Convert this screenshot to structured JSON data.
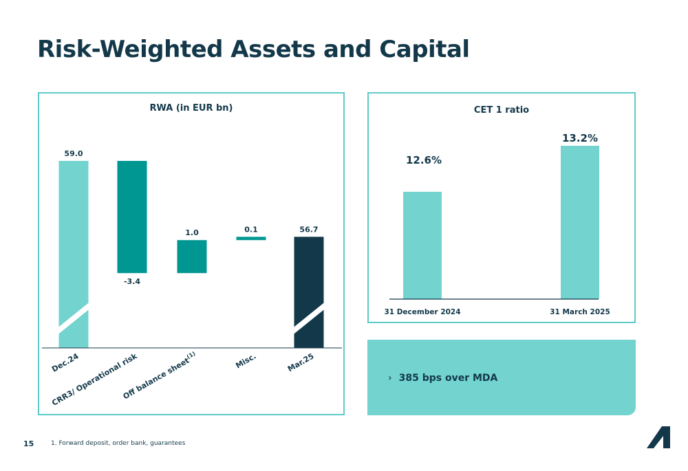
{
  "page": {
    "title": "Risk-Weighted Assets and Capital",
    "page_number": "15",
    "footnote": "1. Forward deposit, order bank, guarantees"
  },
  "colors": {
    "light_teal": "#72d3cf",
    "dark_teal": "#009691",
    "navy": "#13384a",
    "panel_border": "#5ccbc6"
  },
  "icons": {
    "logo": "company-logo-icon",
    "bullet": "chevron-right-icon"
  },
  "mda": {
    "bullet": "›",
    "text": "385 bps over MDA"
  },
  "chart_data": [
    {
      "type": "bar",
      "subtype": "waterfall",
      "title": "RWA (in EUR bn)",
      "categories": [
        "Dec.24",
        "CRR3/ Operational risk",
        "Off balance sheet",
        "Misc.",
        "Mar.25"
      ],
      "category_footnote": [
        "",
        "",
        "(1)",
        "",
        ""
      ],
      "values": [
        59.0,
        -3.4,
        1.0,
        0.1,
        56.7
      ],
      "labels": [
        "59.0",
        "-3.4",
        "1.0",
        "0.1",
        "56.7"
      ],
      "kinds": [
        "total",
        "delta",
        "delta",
        "delta",
        "total"
      ],
      "bar_colors": [
        "#72d3cf",
        "#009691",
        "#009691",
        "#009691",
        "#13384a"
      ],
      "axis_break": true
    },
    {
      "type": "bar",
      "title": "CET 1 ratio",
      "categories": [
        "31 December 2024",
        "31 March 2025"
      ],
      "values": [
        12.6,
        13.2
      ],
      "labels": [
        "12.6%",
        "13.2%"
      ],
      "bar_color": "#72d3cf"
    }
  ]
}
